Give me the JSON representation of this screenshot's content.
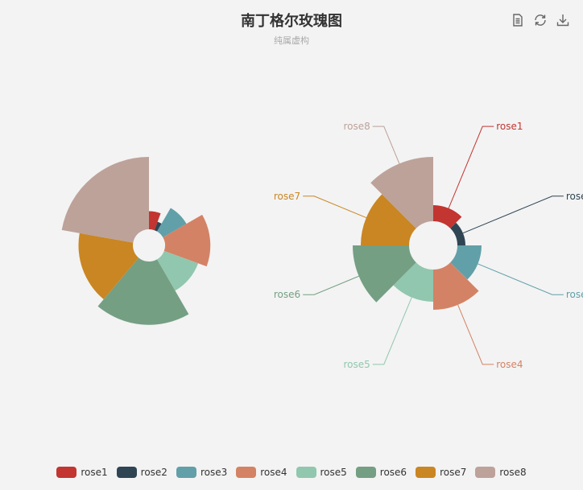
{
  "title": "南丁格尔玫瑰图",
  "subtitle": "纯属虚构",
  "toolbox": {
    "icons": [
      "data-view-icon",
      "refresh-icon",
      "download-icon"
    ]
  },
  "chart_data": {
    "type": "pie",
    "rose": true,
    "categories": [
      "rose1",
      "rose2",
      "rose3",
      "rose4",
      "rose5",
      "rose6",
      "rose7",
      "rose8"
    ],
    "colors": [
      "#c23531",
      "#2f4554",
      "#61a0a8",
      "#d48265",
      "#91c7ae",
      "#749f83",
      "#ca8622",
      "#bda29a"
    ],
    "charts": [
      {
        "roseType": "radius",
        "labels_shown": false,
        "values": [
          10,
          5,
          15,
          25,
          20,
          35,
          30,
          40
        ]
      },
      {
        "roseType": "area",
        "labels_shown": true,
        "values": [
          10,
          5,
          15,
          25,
          20,
          35,
          30,
          40
        ]
      }
    ],
    "legend_position": "bottom"
  }
}
